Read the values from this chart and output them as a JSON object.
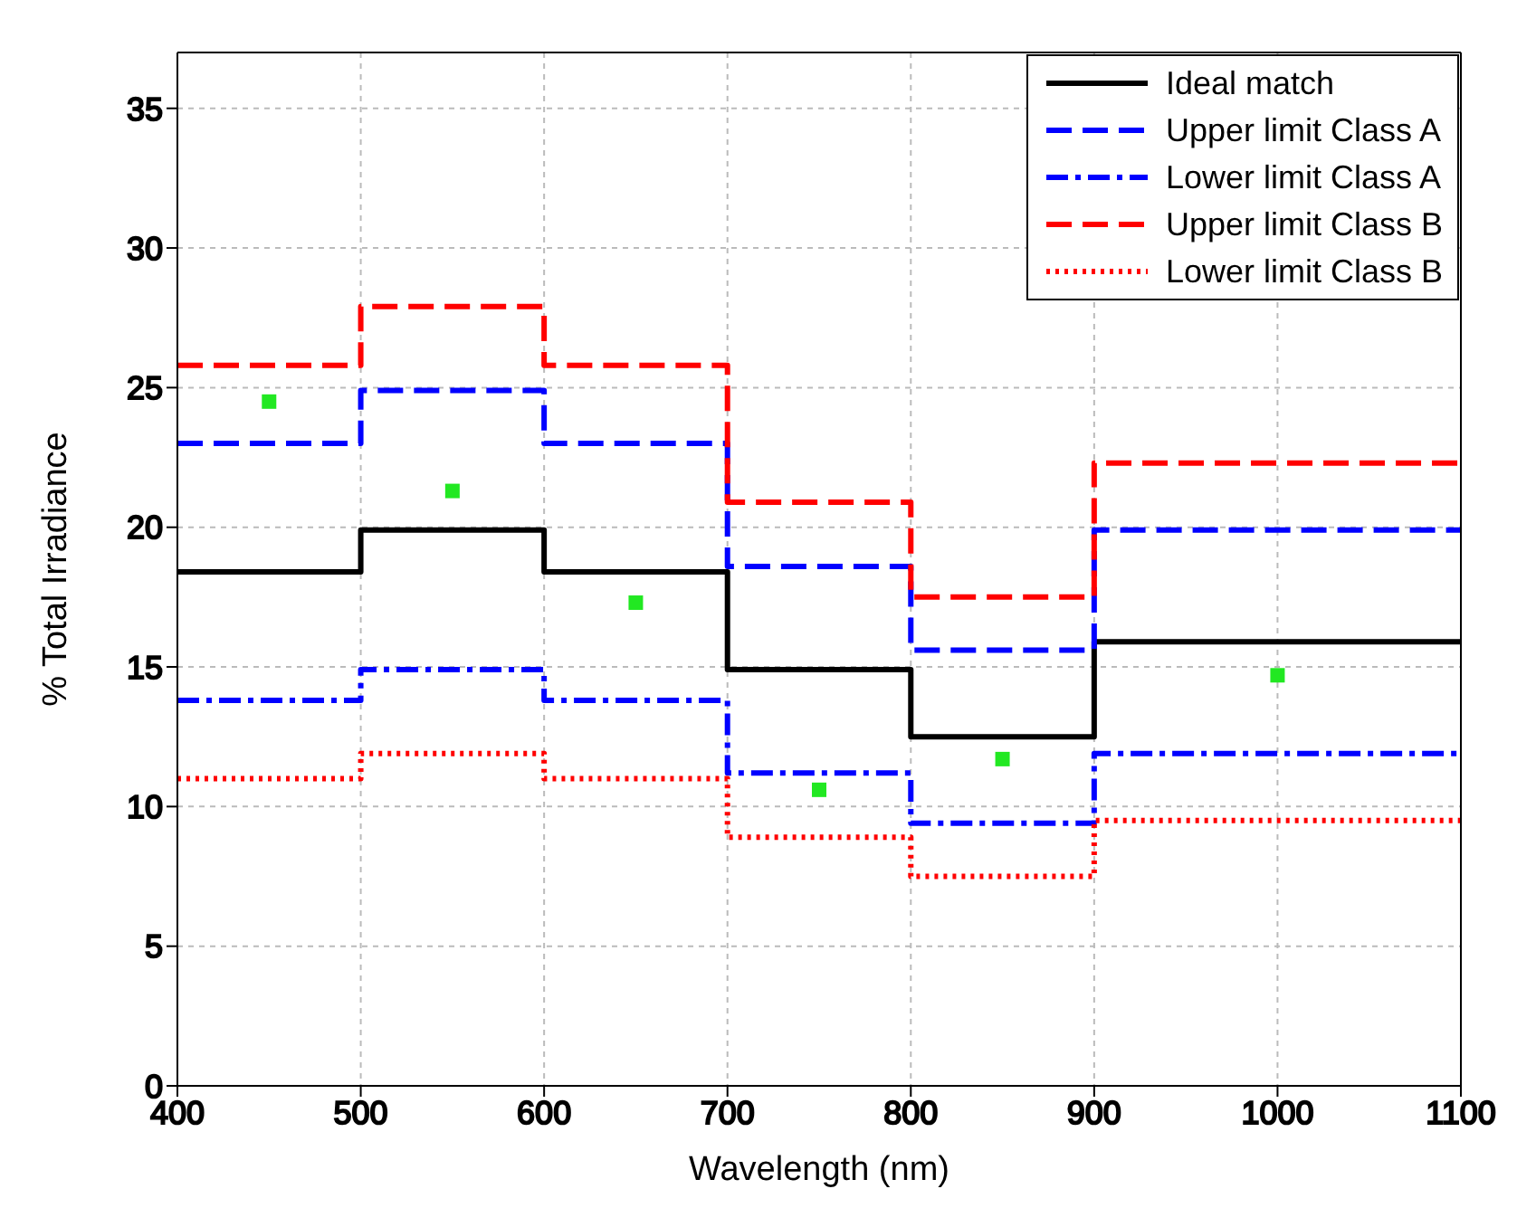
{
  "chart_data": {
    "type": "step",
    "xlabel": "Wavelength (nm)",
    "ylabel": "% Total Irradiance",
    "x": [
      400,
      500,
      600,
      700,
      800,
      900,
      1100
    ],
    "xlim": [
      400,
      1100
    ],
    "xticks": [
      400,
      500,
      600,
      700,
      800,
      900,
      1000,
      1100
    ],
    "ylim": [
      0,
      37
    ],
    "yticks": [
      0,
      5,
      10,
      15,
      20,
      25,
      30,
      35
    ],
    "grid": true,
    "legend": "top right",
    "marker": "none",
    "series": [
      {
        "name": "Ideal match",
        "color": "#000000",
        "line_style": "solid",
        "values": [
          18.4,
          19.9,
          18.4,
          14.9,
          12.5,
          15.9,
          15.9
        ]
      },
      {
        "name": "Upper limit Class A",
        "color": "#0000ff",
        "line_style": "dashed",
        "values": [
          23.0,
          24.9,
          23.0,
          18.6,
          15.6,
          19.9,
          19.9
        ]
      },
      {
        "name": "Lower limit Class A",
        "color": "#0000ff",
        "line_style": "dashdot",
        "values": [
          13.8,
          14.9,
          13.8,
          11.2,
          9.4,
          11.9,
          11.9
        ]
      },
      {
        "name": "Upper limit Class B",
        "color": "#ff0000",
        "line_style": "dashed",
        "values": [
          25.8,
          27.9,
          25.8,
          20.9,
          17.5,
          22.3,
          22.3
        ]
      },
      {
        "name": "Lower limit Class B",
        "color": "#ff0000",
        "line_style": "dotted",
        "values": [
          11.0,
          11.9,
          11.0,
          8.9,
          7.5,
          9.5,
          9.5
        ]
      },
      {
        "type": "scatter",
        "marker": "square",
        "color": "#22e822",
        "x": [
          450,
          550,
          650,
          750,
          850,
          1000
        ],
        "values": [
          24.5,
          21.3,
          17.3,
          10.6,
          11.7,
          14.7
        ]
      }
    ]
  }
}
